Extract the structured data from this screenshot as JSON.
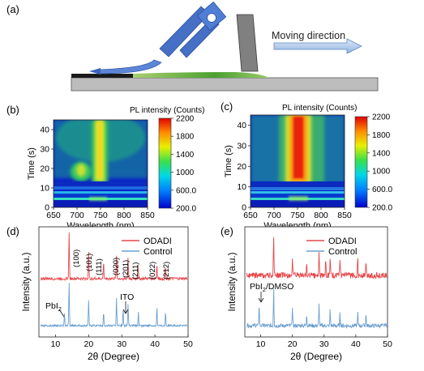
{
  "panels": {
    "a": {
      "label": "(a)",
      "moving_direction": "Moving direction"
    },
    "b": {
      "label": "(b)",
      "colorbar_title": "PL intensity (Counts)",
      "colorbar_ticks": [
        "2200",
        "1800",
        "1400",
        "1000",
        "600.0",
        "200.0"
      ]
    },
    "c": {
      "label": "(c)",
      "colorbar_title": "PL intensity (Counts)",
      "colorbar_ticks": [
        "2200",
        "1800",
        "1400",
        "1000",
        "600.0",
        "200.0"
      ]
    },
    "d": {
      "label": "(d)",
      "legend": [
        "ODADI",
        "Control"
      ],
      "peak_labels": [
        "(100)",
        "(101)",
        "(111)",
        "(020)",
        "(201)",
        "(211)",
        "(022)",
        "(212)"
      ],
      "annotations": {
        "pbi2": "PbI",
        "pbi2_sub": "2",
        "ito": "ITO"
      }
    },
    "e": {
      "label": "(e)",
      "legend": [
        "ODADI",
        "Control"
      ],
      "annotations": {
        "pbi2_dmso_a": "PbI",
        "pbi2_dmso_sub": "2",
        "pbi2_dmso_b": "/DMSO"
      }
    }
  },
  "chart_data": [
    {
      "type": "heatmap",
      "panel": "b",
      "xlabel": "Wavelength (nm)",
      "ylabel": "Time (s)",
      "xlim": [
        650,
        850
      ],
      "ylim": [
        0,
        45
      ],
      "xticks": [
        650,
        700,
        750,
        800,
        850
      ],
      "yticks": [
        0,
        10,
        20,
        30,
        40
      ],
      "colorbar_range": [
        200,
        2200
      ],
      "description_values": {
        "main_peak_nm": 750,
        "early_peak_nm": 700
      }
    },
    {
      "type": "heatmap",
      "panel": "c",
      "xlabel": "Wavelength (nm)",
      "ylabel": "Time (s)",
      "xlim": [
        650,
        850
      ],
      "ylim": [
        0,
        45
      ],
      "xticks": [
        650,
        700,
        750,
        800,
        850
      ],
      "yticks": [
        0,
        10,
        20,
        30,
        40
      ],
      "colorbar_range": [
        200,
        2200
      ],
      "description_values": {
        "main_peak_nm": 750
      }
    },
    {
      "type": "line",
      "panel": "d",
      "xlabel": "2θ (Degree)",
      "ylabel": "Intensity (a.u.)",
      "xlim": [
        5,
        50
      ],
      "xticks": [
        10,
        20,
        30,
        40,
        50
      ],
      "series": [
        {
          "name": "ODADI",
          "color": "#e8474a",
          "peaks": [
            [
              14.1,
              0.95
            ],
            [
              20.0,
              0.55
            ],
            [
              24.5,
              0.35
            ],
            [
              28.4,
              0.5
            ],
            [
              31.9,
              0.45
            ],
            [
              34.9,
              0.3
            ],
            [
              40.6,
              0.3
            ],
            [
              43.2,
              0.25
            ]
          ]
        },
        {
          "name": "Control",
          "color": "#6b9fd0",
          "peaks": [
            [
              12.7,
              0.25
            ],
            [
              14.1,
              0.95
            ],
            [
              20.0,
              0.55
            ],
            [
              24.5,
              0.3
            ],
            [
              28.4,
              0.6
            ],
            [
              30.4,
              0.35
            ],
            [
              31.9,
              0.45
            ],
            [
              35.0,
              0.3
            ],
            [
              40.6,
              0.4
            ],
            [
              43.2,
              0.3
            ]
          ]
        }
      ]
    },
    {
      "type": "line",
      "panel": "e",
      "xlabel": "2θ (Degree)",
      "ylabel": "Intensity (a.u.)",
      "xlim": [
        5,
        50
      ],
      "xticks": [
        10,
        20,
        30,
        40,
        50
      ],
      "series": [
        {
          "name": "ODADI",
          "color": "#e8474a",
          "peaks": [
            [
              14.1,
              1.0
            ],
            [
              20.0,
              0.35
            ],
            [
              24.5,
              0.3
            ],
            [
              28.4,
              0.55
            ],
            [
              30.5,
              0.4
            ],
            [
              31.9,
              0.45
            ],
            [
              35.0,
              0.3
            ],
            [
              40.6,
              0.45
            ],
            [
              43.2,
              0.3
            ]
          ]
        },
        {
          "name": "Control",
          "color": "#6b9fd0",
          "peaks": [
            [
              9.5,
              0.55
            ],
            [
              14.1,
              1.0
            ],
            [
              20.0,
              0.45
            ],
            [
              24.5,
              0.3
            ],
            [
              28.4,
              0.55
            ],
            [
              31.9,
              0.4
            ],
            [
              35.0,
              0.3
            ],
            [
              40.6,
              0.35
            ],
            [
              43.2,
              0.3
            ]
          ]
        }
      ]
    }
  ]
}
